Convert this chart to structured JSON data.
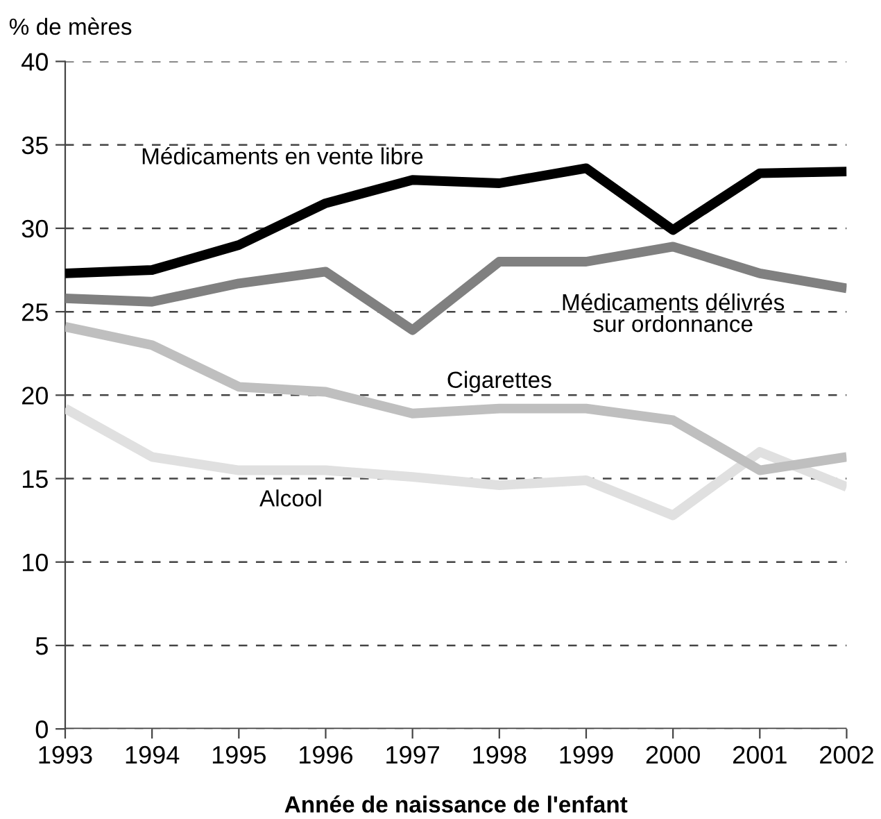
{
  "chart_data": {
    "type": "line",
    "ylabel": "% de mères",
    "xlabel": "Année de naissance de l'enfant",
    "x": [
      1993,
      1994,
      1995,
      1996,
      1997,
      1998,
      1999,
      2000,
      2001,
      2002
    ],
    "series": [
      {
        "name": "Médicaments en vente libre",
        "color": "#000000",
        "values": [
          27.3,
          27.5,
          29.0,
          31.5,
          32.9,
          32.7,
          33.6,
          29.9,
          33.3,
          33.4
        ]
      },
      {
        "name": "Médicaments délivrés\nsur ordonnance",
        "color": "#808080",
        "values": [
          25.8,
          25.6,
          26.7,
          27.4,
          23.9,
          28.0,
          28.0,
          28.9,
          27.3,
          26.4
        ]
      },
      {
        "name": "Cigarettes",
        "color": "#bfbfbf",
        "values": [
          24.1,
          23.0,
          20.5,
          20.2,
          18.9,
          19.2,
          19.2,
          18.5,
          15.5,
          16.3
        ]
      },
      {
        "name": "Alcool",
        "color": "#e0e0e0",
        "values": [
          19.2,
          16.3,
          15.5,
          15.5,
          15.1,
          14.6,
          14.9,
          12.8,
          16.6,
          14.5
        ]
      }
    ],
    "xlim": [
      1993,
      2002
    ],
    "ylim": [
      0,
      40
    ],
    "xticks": [
      1993,
      1994,
      1995,
      1996,
      1997,
      1998,
      1999,
      2000,
      2001,
      2002
    ],
    "yticks": [
      0,
      5,
      10,
      15,
      20,
      25,
      30,
      35,
      40
    ],
    "grid": "y",
    "legend": false,
    "marker": "none",
    "line_style": "solid"
  }
}
